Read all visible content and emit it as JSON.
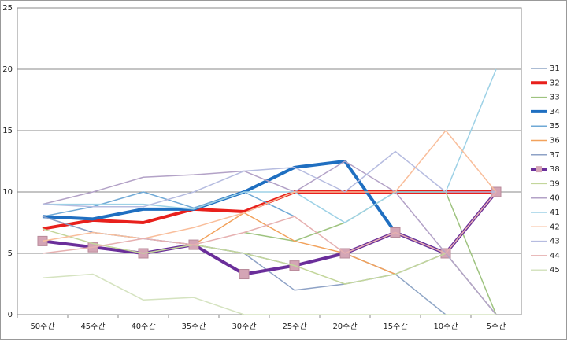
{
  "chart_data": {
    "type": "line",
    "categories": [
      "50주간",
      "45주간",
      "40주간",
      "35주간",
      "30주간",
      "25주간",
      "20주간",
      "15주간",
      "10주간",
      "5주간"
    ],
    "ylim": [
      0,
      25
    ],
    "yticks": [
      0,
      5,
      10,
      15,
      20,
      25
    ],
    "grid": true,
    "legend": "right",
    "series": [
      {
        "name": "31",
        "color": "#8fa6c6",
        "values": [
          8,
          6.7,
          6.2,
          5.7,
          5,
          4,
          5,
          3.3,
          0,
          null
        ]
      },
      {
        "name": "32",
        "color": "#e8201c",
        "width": 4,
        "values": [
          7,
          7.7,
          7.5,
          8.6,
          8.4,
          10,
          10,
          10,
          10,
          10
        ]
      },
      {
        "name": "33",
        "color": "#9ec37f",
        "values": [
          null,
          null,
          null,
          null,
          6.7,
          6,
          7.5,
          10,
          10,
          0
        ]
      },
      {
        "name": "34",
        "color": "#1f6fc1",
        "width": 4,
        "values": [
          8,
          7.8,
          8.6,
          8.6,
          10,
          12,
          12.5,
          6.7,
          5,
          null
        ]
      },
      {
        "name": "35",
        "color": "#6fa9d6",
        "values": [
          8,
          8.8,
          10,
          8.7,
          10,
          8,
          null,
          null,
          null,
          null
        ]
      },
      {
        "name": "36",
        "color": "#f2a25c",
        "values": [
          6,
          5.5,
          5,
          5.7,
          8.3,
          6,
          5,
          3.3,
          null,
          null
        ]
      },
      {
        "name": "37",
        "color": "#8ea2c6",
        "values": [
          8,
          6.7,
          6.2,
          5.7,
          5,
          2,
          2.5,
          3.3,
          5,
          0
        ]
      },
      {
        "name": "38",
        "color": "#6a2e9a",
        "width": 4,
        "marker": "square",
        "values": [
          6,
          5.5,
          5,
          5.7,
          3.3,
          4,
          5,
          6.7,
          5,
          10
        ]
      },
      {
        "name": "39",
        "color": "#c3d69b",
        "values": [
          7,
          5.8,
          5,
          5.7,
          5,
          4,
          2.5,
          3.3,
          5,
          0
        ]
      },
      {
        "name": "40",
        "color": "#b3a2c7",
        "values": [
          9,
          10,
          11.2,
          11.4,
          11.7,
          10,
          12.5,
          10,
          5,
          0
        ]
      },
      {
        "name": "41",
        "color": "#9dd1e6",
        "values": [
          9,
          9,
          9,
          8.6,
          10,
          10,
          7.5,
          10,
          10,
          20
        ]
      },
      {
        "name": "42",
        "color": "#f9be9b",
        "values": [
          6,
          6.7,
          6.2,
          7.1,
          8.3,
          10,
          10,
          10,
          15,
          10
        ]
      },
      {
        "name": "43",
        "color": "#b6bce0",
        "values": [
          9,
          8.8,
          8.8,
          10,
          11.7,
          12,
          10,
          13.3,
          10,
          10
        ]
      },
      {
        "name": "44",
        "color": "#e6b0b0",
        "values": [
          5,
          5.5,
          6.2,
          5.7,
          6.7,
          8,
          5,
          6.7,
          5,
          10
        ]
      },
      {
        "name": "45",
        "color": "#d5e3c0",
        "values": [
          3,
          3.3,
          1.2,
          1.4,
          0,
          0,
          0,
          0,
          0,
          0
        ]
      }
    ]
  }
}
